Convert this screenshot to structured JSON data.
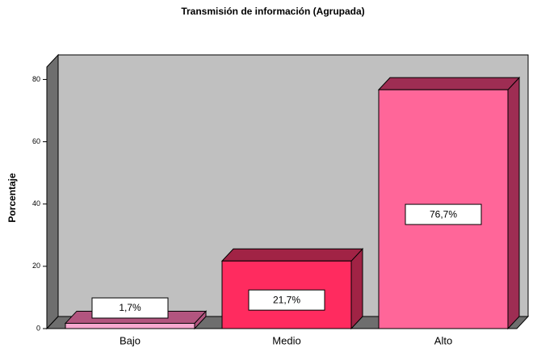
{
  "chart_data": {
    "type": "bar3d",
    "title": "Transmisión de información (Agrupada)",
    "y_label": "Porcentaje",
    "categories": [
      "Bajo",
      "Medio",
      "Alto"
    ],
    "values": [
      1.7,
      21.7,
      76.7
    ],
    "value_labels": [
      "1,7%",
      "21,7%",
      "76,7%"
    ],
    "colors": [
      "#f7a8cf",
      "#ff2b5f",
      "#ff6699"
    ],
    "top_colors": [
      "#b2557f",
      "#a12345",
      "#9e2d53"
    ],
    "ylim": [
      0,
      84
    ],
    "yticks": [
      0,
      20,
      40,
      60,
      80
    ]
  }
}
